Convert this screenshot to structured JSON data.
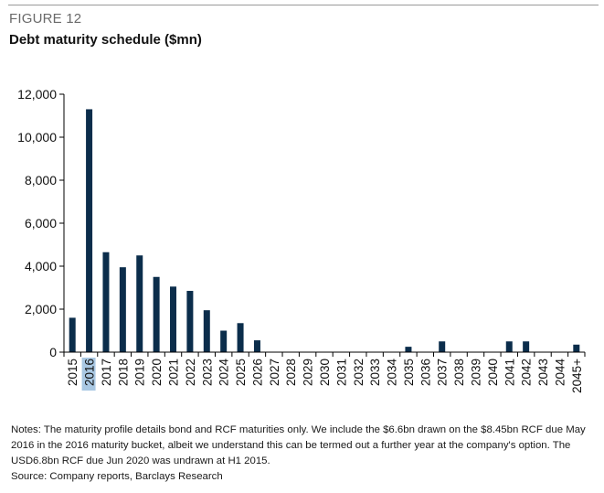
{
  "figure": {
    "label": "FIGURE 12",
    "title": "Debt maturity schedule ($mn)"
  },
  "colors": {
    "bar": "#0b2d4b",
    "highlight": "#a9c8e3",
    "axis": "#000000"
  },
  "chart_data": {
    "type": "bar",
    "title": "Debt maturity schedule ($mn)",
    "xlabel": "",
    "ylabel": "",
    "ylim": [
      0,
      12000
    ],
    "yticks": [
      0,
      2000,
      4000,
      6000,
      8000,
      10000,
      12000
    ],
    "ytick_labels": [
      "0",
      "2,000",
      "4,000",
      "6,000",
      "8,000",
      "10,000",
      "12,000"
    ],
    "highlighted_category": "2016",
    "categories": [
      "2015",
      "2016",
      "2017",
      "2018",
      "2019",
      "2020",
      "2021",
      "2022",
      "2023",
      "2024",
      "2025",
      "2026",
      "2027",
      "2028",
      "2029",
      "2030",
      "2031",
      "2032",
      "2033",
      "2034",
      "2035",
      "2036",
      "2037",
      "2038",
      "2039",
      "2040",
      "2041",
      "2042",
      "2043",
      "2044",
      "2045+"
    ],
    "values": [
      1600,
      11300,
      4650,
      3950,
      4500,
      3500,
      3050,
      2850,
      1950,
      1000,
      1350,
      550,
      0,
      0,
      0,
      0,
      0,
      0,
      0,
      0,
      250,
      0,
      500,
      0,
      0,
      0,
      500,
      500,
      0,
      0,
      350
    ]
  },
  "notes": {
    "text": "Notes: The maturity profile details bond and RCF maturities only. We include the $6.6bn drawn on the $8.45bn RCF due May 2016 in the 2016 maturity bucket, albeit we understand this can be termed out a further year at the company's option. The USD6.8bn RCF due Jun 2020 was undrawn at H1 2015.",
    "source": "Source: Company reports, Barclays Research"
  }
}
